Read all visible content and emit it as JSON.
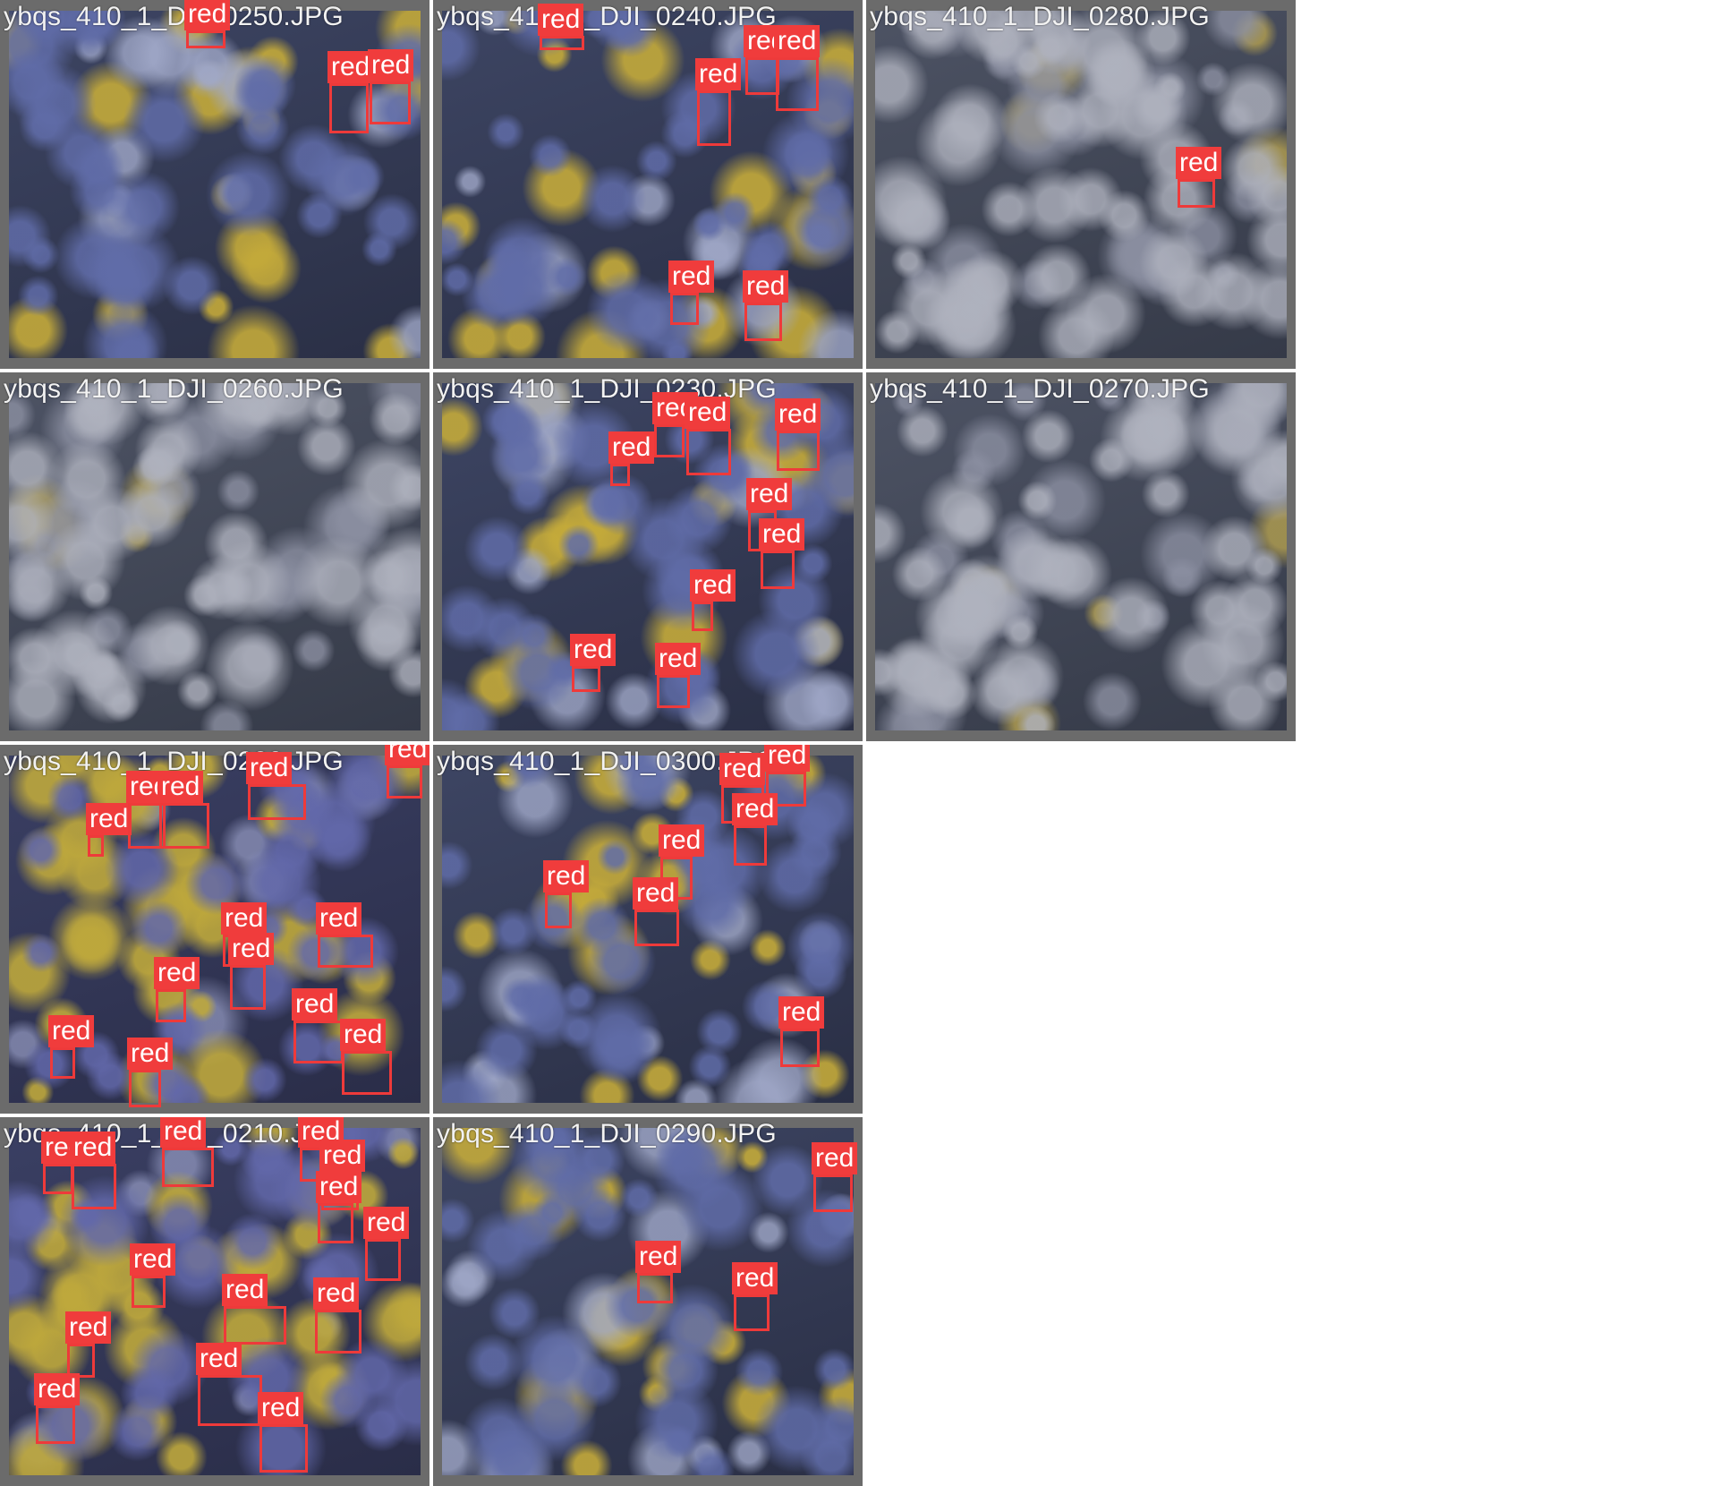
{
  "tiles": [
    {
      "filename": "ybqs_410_1_DJI_0250.JPG",
      "variant": "blue-yellow",
      "detections": [
        {
          "label": "red"
        },
        {
          "label": "red"
        },
        {
          "label": "red"
        }
      ]
    },
    {
      "filename": "ybqs_410_1_DJI_0240.JPG",
      "variant": "blue-yellow",
      "detections": [
        {
          "label": "red"
        },
        {
          "label": "red"
        },
        {
          "label": "red"
        },
        {
          "label": "red"
        },
        {
          "label": "red"
        },
        {
          "label": "red"
        }
      ]
    },
    {
      "filename": "ybqs_410_1_DJI_0280.JPG",
      "variant": "pale",
      "detections": [
        {
          "label": "red"
        }
      ]
    },
    {
      "filename": "ybqs_410_1_DJI_0260.JPG",
      "variant": "pale",
      "detections": []
    },
    {
      "filename": "ybqs_410_1_DJI_0230.JPG",
      "variant": "blue-yellow",
      "detections": [
        {
          "label": "red"
        },
        {
          "label": "red"
        },
        {
          "label": "red"
        },
        {
          "label": "red"
        },
        {
          "label": "red"
        },
        {
          "label": "red"
        },
        {
          "label": "red"
        },
        {
          "label": "red"
        },
        {
          "label": "red"
        }
      ]
    },
    {
      "filename": "ybqs_410_1_DJI_0270.JPG",
      "variant": "pale",
      "detections": []
    },
    {
      "filename": "ybqs_410_1_DJI_0220.JPG",
      "variant": "dense-yellow",
      "detections": [
        {
          "label": "red"
        },
        {
          "label": "red"
        },
        {
          "label": "red"
        },
        {
          "label": "red"
        },
        {
          "label": "red"
        },
        {
          "label": "red"
        },
        {
          "label": "red"
        },
        {
          "label": "red"
        },
        {
          "label": "red"
        },
        {
          "label": "red"
        },
        {
          "label": "red"
        },
        {
          "label": "red"
        },
        {
          "label": "red"
        }
      ]
    },
    {
      "filename": "ybqs_410_1_DJI_0300.JPG",
      "variant": "blue-yellow",
      "detections": [
        {
          "label": "red"
        },
        {
          "label": "red"
        },
        {
          "label": "red"
        },
        {
          "label": "red"
        },
        {
          "label": "red"
        },
        {
          "label": "red"
        },
        {
          "label": "red"
        }
      ]
    },
    {
      "filename": "ybqs_410_1_DJI_0210.JPG",
      "variant": "dense-yellow",
      "detections": [
        {
          "label": "red"
        },
        {
          "label": "red"
        },
        {
          "label": "red"
        },
        {
          "label": "red"
        },
        {
          "label": "red"
        },
        {
          "label": "red"
        },
        {
          "label": "red"
        },
        {
          "label": "red"
        },
        {
          "label": "red"
        },
        {
          "label": "red"
        },
        {
          "label": "red"
        },
        {
          "label": "red"
        },
        {
          "label": "red"
        },
        {
          "label": "red"
        },
        {
          "label": "red"
        }
      ]
    },
    {
      "filename": "ybqs_410_1_DJI_0290.JPG",
      "variant": "blue-yellow",
      "detections": [
        {
          "label": "red"
        },
        {
          "label": "red"
        },
        {
          "label": "red"
        }
      ]
    }
  ]
}
